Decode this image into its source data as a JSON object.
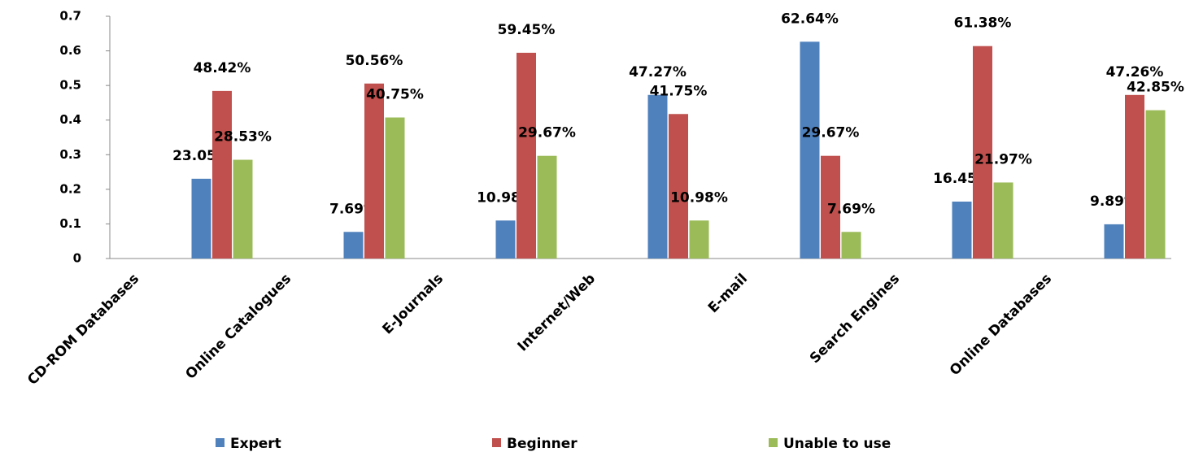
{
  "chart_data": {
    "type": "bar",
    "categories": [
      "CD-ROM Databases",
      "Online Catalogues",
      "E-Journals",
      "Internet/Web",
      "E-mail",
      "Search Engines",
      "Online Databases"
    ],
    "series": [
      {
        "name": "Expert",
        "color": "#4f81bd",
        "values": [
          0.2305,
          0.0769,
          0.1098,
          0.4727,
          0.6264,
          0.1645,
          0.0989
        ],
        "value_labels": [
          "23.05%",
          "7.69%",
          "10.98%",
          "47.27%",
          "62.64%",
          "16.45%",
          "9.89%"
        ]
      },
      {
        "name": "Beginner",
        "color": "#c0504d",
        "values": [
          0.4842,
          0.5056,
          0.5945,
          0.4175,
          0.2967,
          0.6138,
          0.4726
        ],
        "value_labels": [
          "48.42%",
          "50.56%",
          "59.45%",
          "41.75%",
          "29.67%",
          "61.38%",
          "47.26%"
        ]
      },
      {
        "name": "Unable to use",
        "color": "#9bbb59",
        "values": [
          0.2853,
          0.4075,
          0.2967,
          0.1098,
          0.0769,
          0.2197,
          0.4285
        ],
        "value_labels": [
          "28.53%",
          "40.75%",
          "29.67%",
          "10.98%",
          "7.69%",
          "21.97%",
          "42.85%"
        ]
      }
    ],
    "ylim": [
      0,
      0.7
    ],
    "yticks": [
      0,
      0.1,
      0.2,
      0.3,
      0.4,
      0.5,
      0.6,
      0.7
    ],
    "grid": false,
    "legend": "bottom"
  }
}
